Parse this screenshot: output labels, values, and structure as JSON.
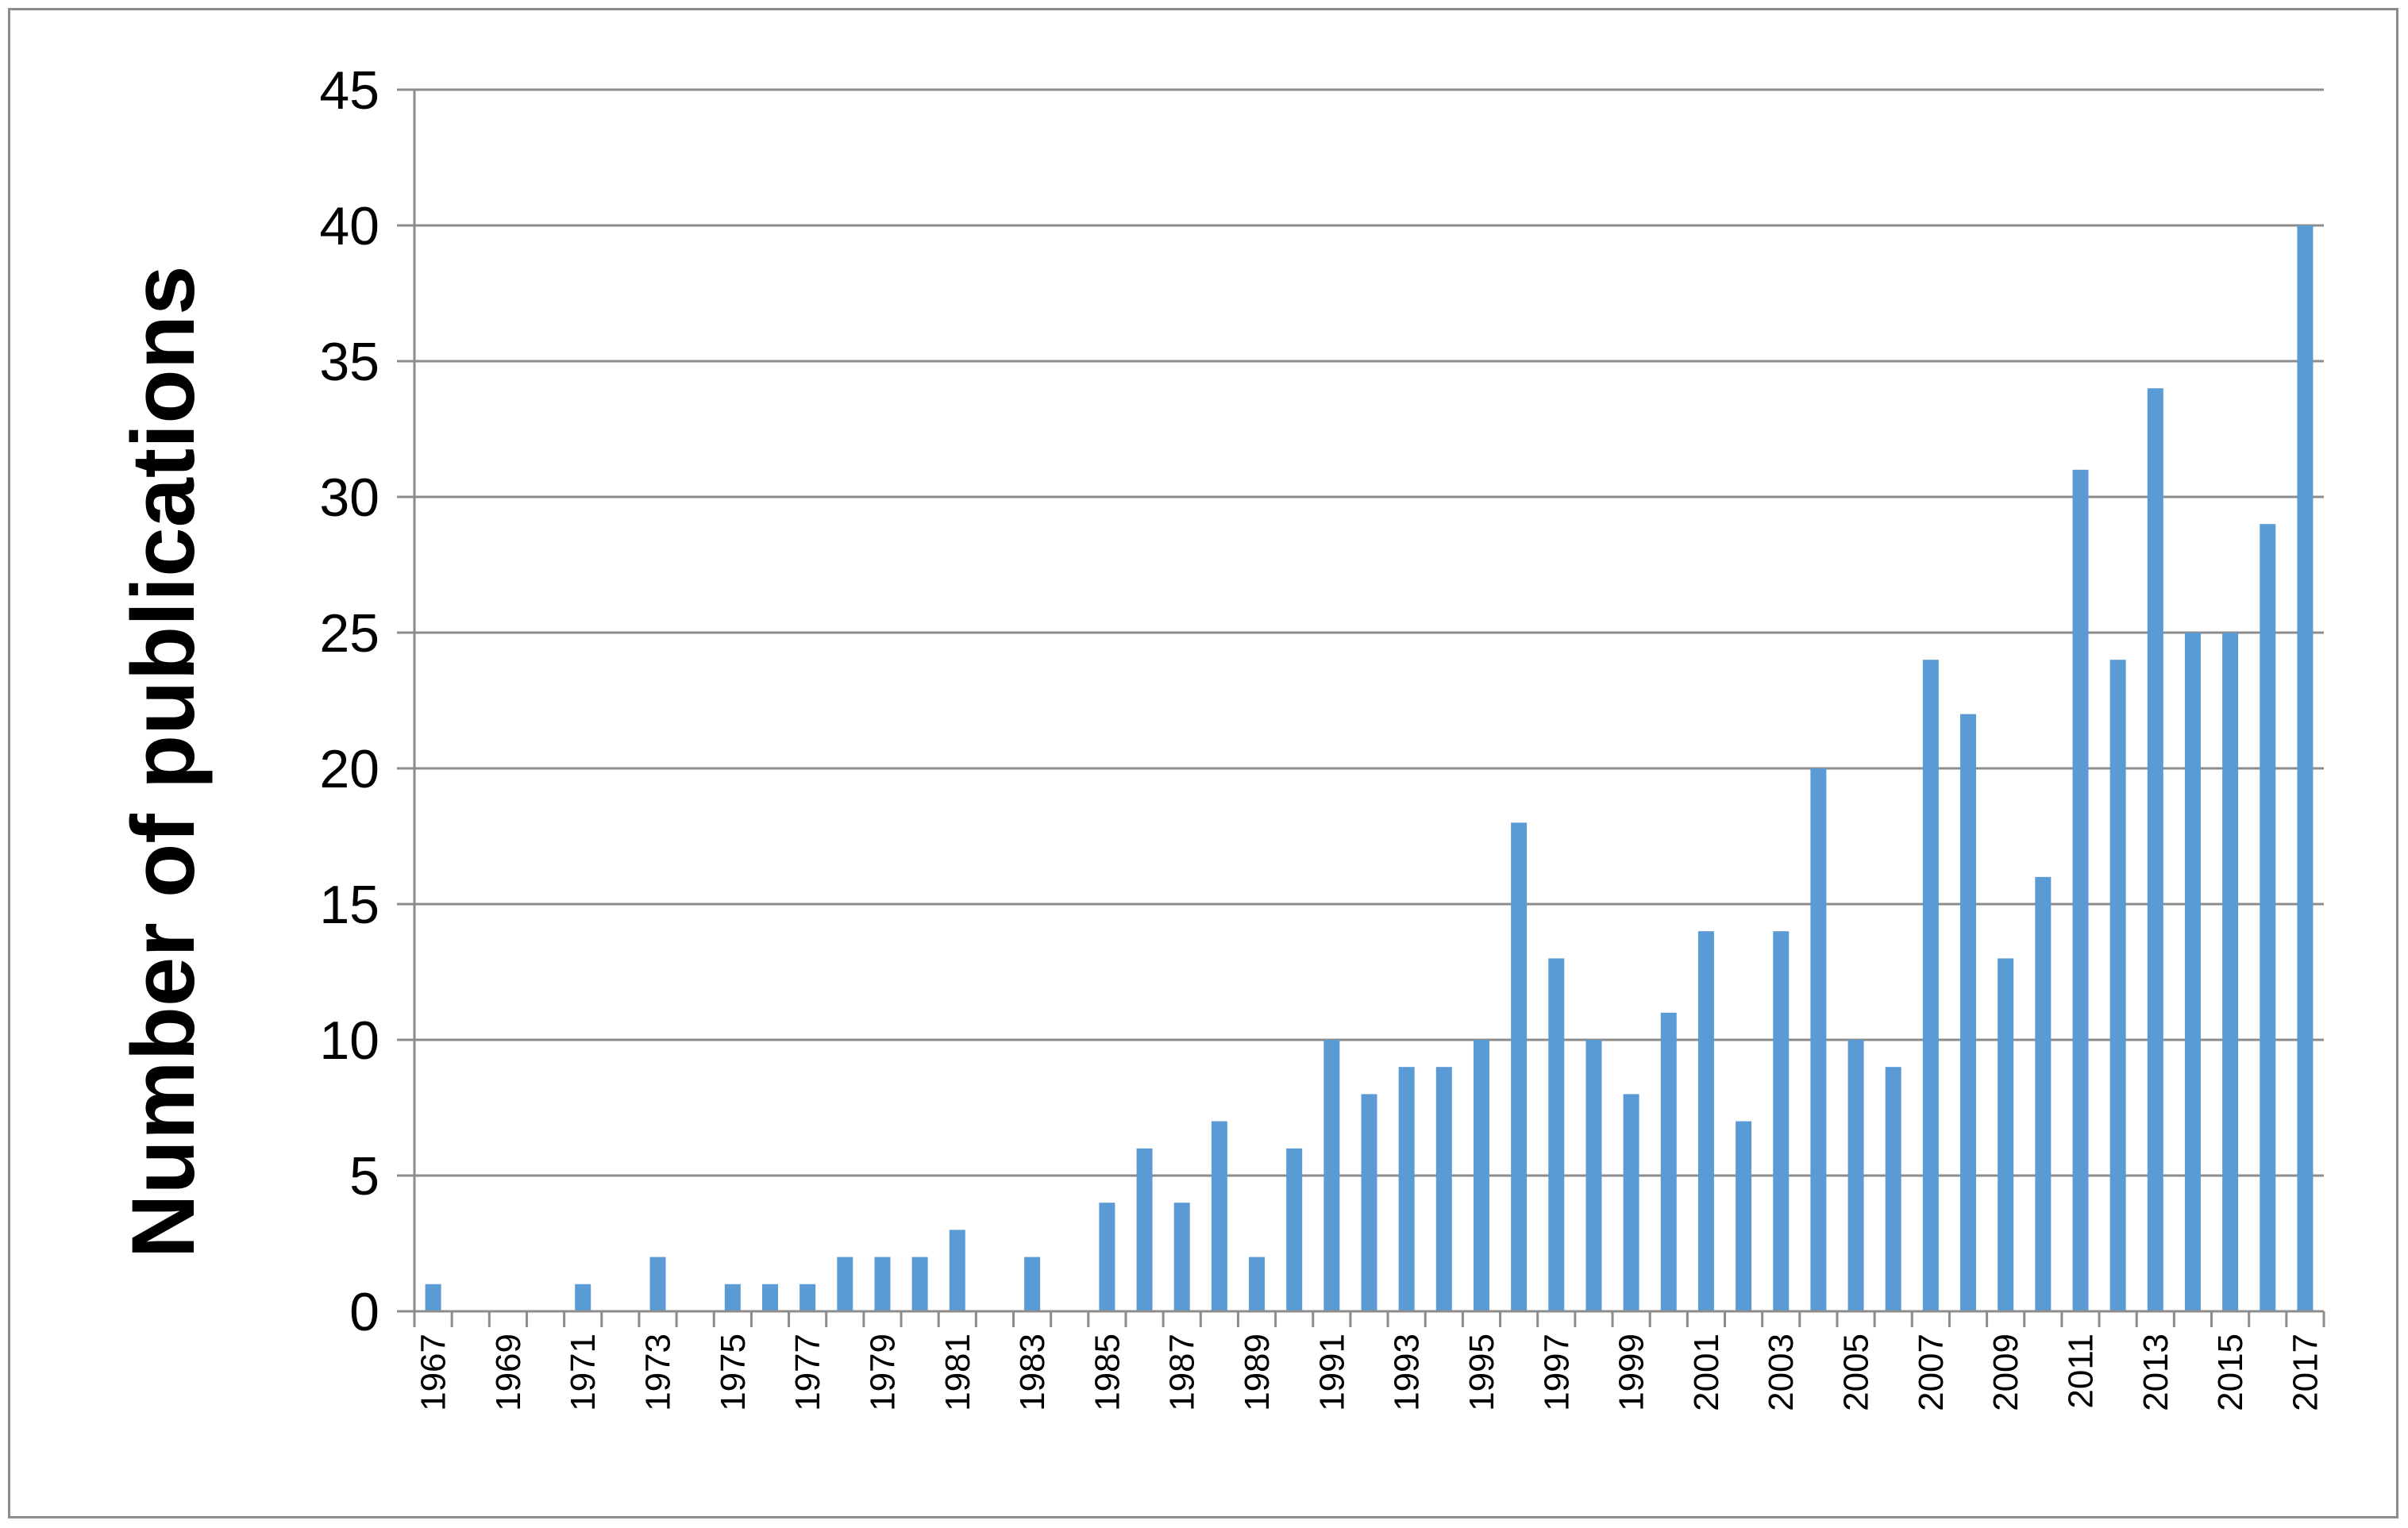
{
  "chart_data": {
    "type": "bar",
    "title": "",
    "xlabel": "",
    "ylabel": "Number of publications",
    "ylim": [
      0,
      45
    ],
    "yticks": [
      "0",
      "5",
      "10",
      "15",
      "20",
      "25",
      "30",
      "35",
      "40",
      "45"
    ],
    "grid": true,
    "legend": "none",
    "bar_color": "#5b9bd5",
    "categories": [
      "1967",
      "1968",
      "1969",
      "1970",
      "1971",
      "1972",
      "1973",
      "1974",
      "1975",
      "1976",
      "1977",
      "1978",
      "1979",
      "1980",
      "1981",
      "1982",
      "1983",
      "1984",
      "1985",
      "1986",
      "1987",
      "1988",
      "1989",
      "1990",
      "1991",
      "1992",
      "1993",
      "1994",
      "1995",
      "1996",
      "1997",
      "1998",
      "1999",
      "2000",
      "2001",
      "2002",
      "2003",
      "2004",
      "2005",
      "2006",
      "2007",
      "2008",
      "2009",
      "2010",
      "2011",
      "2012",
      "2013",
      "2014",
      "2015",
      "2016",
      "2017"
    ],
    "xtick_labels": [
      "1967",
      "",
      "1969",
      "",
      "1971",
      "",
      "1973",
      "",
      "1975",
      "",
      "1977",
      "",
      "1979",
      "",
      "1981",
      "",
      "1983",
      "",
      "1985",
      "",
      "1987",
      "",
      "1989",
      "",
      "1991",
      "",
      "1993",
      "",
      "1995",
      "",
      "1997",
      "",
      "1999",
      "",
      "2001",
      "",
      "2003",
      "",
      "2005",
      "",
      "2007",
      "",
      "2009",
      "",
      "2011",
      "",
      "2013",
      "",
      "2015",
      "",
      "2017"
    ],
    "values": [
      1,
      0,
      0,
      0,
      1,
      0,
      2,
      0,
      1,
      1,
      1,
      2,
      2,
      2,
      3,
      0,
      2,
      0,
      4,
      6,
      4,
      7,
      2,
      6,
      10,
      8,
      9,
      9,
      10,
      18,
      13,
      10,
      8,
      11,
      14,
      7,
      14,
      20,
      10,
      9,
      24,
      22,
      13,
      16,
      31,
      24,
      34,
      25,
      25,
      29,
      40
    ]
  }
}
